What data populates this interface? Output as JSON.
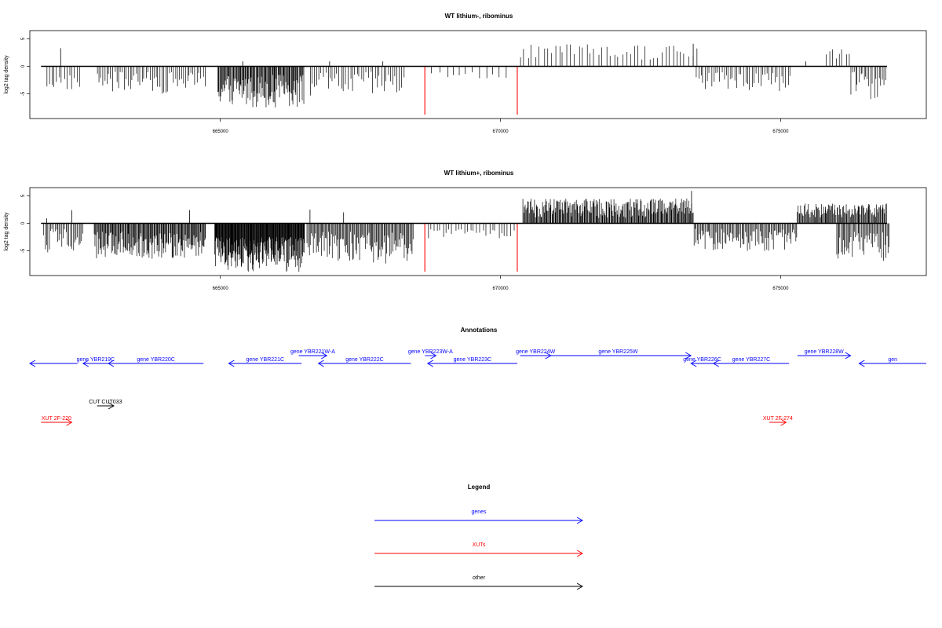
{
  "chart_data": [
    {
      "type": "bar",
      "title": "WT lithium-, ribominus",
      "ylabel": "log2 tag density",
      "xlim": [
        661600,
        677600
      ],
      "ylim": [
        -9.5,
        6.5
      ],
      "xticks": [
        665000,
        670000,
        675000
      ],
      "yticks": [
        -5,
        0,
        5
      ],
      "baseline": {
        "x": [
          661800,
          676900
        ]
      },
      "red_markers": [
        {
          "x": 668650,
          "y": -8.8
        },
        {
          "x": 670300,
          "y": -8.8
        }
      ],
      "segments": [
        {
          "from": 661900,
          "to": 662500,
          "step": 45,
          "min": -4.5,
          "max": -1.5
        },
        {
          "from": 662800,
          "to": 664750,
          "step": 35,
          "min": -5.0,
          "max": -1.0
        },
        {
          "from": 664950,
          "to": 666500,
          "step": 14,
          "min": -7.5,
          "max": -1.5
        },
        {
          "from": 666600,
          "to": 668300,
          "step": 40,
          "min": -6.0,
          "max": -1.0
        },
        {
          "from": 668800,
          "to": 670200,
          "step": 120,
          "min": -2.5,
          "max": -1.0
        },
        {
          "from": 670350,
          "to": 673500,
          "step": 70,
          "min": 1.0,
          "max": 4.0
        },
        {
          "from": 673500,
          "to": 675200,
          "step": 38,
          "min": -4.5,
          "max": -1.0
        },
        {
          "from": 675800,
          "to": 676250,
          "step": 60,
          "min": 1.0,
          "max": 3.2
        },
        {
          "from": 676250,
          "to": 676900,
          "step": 30,
          "min": -6.0,
          "max": -1.0
        }
      ],
      "spikes": [
        {
          "x": 662150,
          "y": 3.3
        },
        {
          "x": 665400,
          "y": 0.9
        },
        {
          "x": 666950,
          "y": 0.9
        },
        {
          "x": 667900,
          "y": 0.9
        },
        {
          "x": 673440,
          "y": 4.1
        },
        {
          "x": 675450,
          "y": 0.9
        }
      ]
    },
    {
      "type": "bar",
      "title": "WT lithium+, ribominus",
      "ylabel": "log2 tag density",
      "xlim": [
        661600,
        677600
      ],
      "ylim": [
        -9.5,
        6.5
      ],
      "xticks": [
        665000,
        670000,
        675000
      ],
      "yticks": [
        -5,
        0,
        5
      ],
      "baseline": {
        "x": [
          661800,
          676900
        ]
      },
      "red_markers": [
        {
          "x": 668650,
          "y": -8.8
        },
        {
          "x": 670300,
          "y": -8.8
        }
      ],
      "segments": [
        {
          "from": 661850,
          "to": 662550,
          "step": 25,
          "min": -5.5,
          "max": -1.0
        },
        {
          "from": 662750,
          "to": 664750,
          "step": 14,
          "min": -6.5,
          "max": -1.5
        },
        {
          "from": 664900,
          "to": 666500,
          "step": 8,
          "min": -9.0,
          "max": -2.5
        },
        {
          "from": 666550,
          "to": 668450,
          "step": 18,
          "min": -7.5,
          "max": -1.5
        },
        {
          "from": 668700,
          "to": 670250,
          "step": 55,
          "min": -3.0,
          "max": -1.0
        },
        {
          "from": 670400,
          "to": 673450,
          "step": 14,
          "min": 1.0,
          "max": 4.5
        },
        {
          "from": 673450,
          "to": 675300,
          "step": 20,
          "min": -5.0,
          "max": -1.0
        },
        {
          "from": 675300,
          "to": 676900,
          "step": 15,
          "min": 1.0,
          "max": 3.6
        },
        {
          "from": 676000,
          "to": 676950,
          "step": 20,
          "min": -7.0,
          "max": -1.5
        }
      ],
      "spikes": [
        {
          "x": 661900,
          "y": 0.9
        },
        {
          "x": 662350,
          "y": 2.4
        },
        {
          "x": 664450,
          "y": 2.4
        },
        {
          "x": 666600,
          "y": 2.5
        },
        {
          "x": 667200,
          "y": 2.0
        },
        {
          "x": 673410,
          "y": 5.9
        },
        {
          "x": 675800,
          "y": 3.0
        }
      ]
    }
  ],
  "annotations": {
    "title": "Annotations",
    "features": [
      {
        "label": "",
        "type": "gene",
        "from": 661600,
        "to": 662450,
        "strand": "-",
        "row": 0
      },
      {
        "label": "gene YBR219C",
        "type": "gene",
        "from": 662550,
        "to": 663000,
        "strand": "-",
        "row": 0
      },
      {
        "label": "gene YBR220C",
        "type": "gene",
        "from": 663000,
        "to": 664700,
        "strand": "-",
        "row": 0
      },
      {
        "label": "gene YBR221C",
        "type": "gene",
        "from": 665150,
        "to": 666450,
        "strand": "-",
        "row": 0
      },
      {
        "label": "gene YBR221W-A",
        "type": "gene",
        "from": 666400,
        "to": 666900,
        "strand": "+",
        "row": 1
      },
      {
        "label": "gene YBR222C",
        "type": "gene",
        "from": 666750,
        "to": 668400,
        "strand": "-",
        "row": 0
      },
      {
        "label": "gene YBR223W-A",
        "type": "gene",
        "from": 668650,
        "to": 668850,
        "strand": "+",
        "row": 1
      },
      {
        "label": "gene YBR223C",
        "type": "gene",
        "from": 668700,
        "to": 670300,
        "strand": "-",
        "row": 0
      },
      {
        "label": "gene YBR224W",
        "type": "gene",
        "from": 670350,
        "to": 670900,
        "strand": "+",
        "row": 1
      },
      {
        "label": "gene YBR225W",
        "type": "gene",
        "from": 670800,
        "to": 673400,
        "strand": "+",
        "row": 1
      },
      {
        "label": "gene YBR226C",
        "type": "gene",
        "from": 673400,
        "to": 673800,
        "strand": "-",
        "row": 0
      },
      {
        "label": "gene YBR227C",
        "type": "gene",
        "from": 673800,
        "to": 675150,
        "strand": "-",
        "row": 0
      },
      {
        "label": "gene YBR228W",
        "type": "gene",
        "from": 675300,
        "to": 676250,
        "strand": "+",
        "row": 1
      },
      {
        "label": "gen",
        "type": "gene",
        "from": 676400,
        "to": 677600,
        "strand": "-",
        "row": 0
      },
      {
        "label": "CUT CUT033",
        "type": "other",
        "from": 662800,
        "to": 663100,
        "strand": "+",
        "row": 2
      },
      {
        "label": "XUT 2F-220",
        "type": "XUT",
        "from": 661800,
        "to": 662350,
        "strand": "+",
        "row": 3
      },
      {
        "label": "XUT 2F-274",
        "type": "XUT",
        "from": 674800,
        "to": 675100,
        "strand": "+",
        "row": 3
      }
    ]
  },
  "legend": {
    "title": "Legend",
    "items": [
      {
        "label": "genes",
        "color": "#0000ff"
      },
      {
        "label": "XUTs",
        "color": "#ff0000"
      },
      {
        "label": "other",
        "color": "#000000"
      }
    ]
  },
  "colors": {
    "gene": "#0000ff",
    "XUT": "#ff0000",
    "other": "#000000",
    "marker": "#ff0000"
  }
}
